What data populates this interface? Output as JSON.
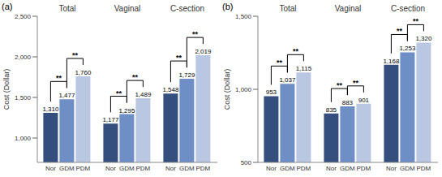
{
  "chart_data": [
    {
      "type": "bar",
      "title": "(a)",
      "y_label": "Cost (Dollar)",
      "grid": false,
      "data_labels": true,
      "categories": [
        "Total",
        "Vaginal",
        "C-section"
      ],
      "ylim": [
        700,
        2500
      ],
      "yticks": [
        {
          "value": 1000,
          "label": "1,000"
        },
        {
          "value": 1500,
          "label": "1,500"
        },
        {
          "value": 2000,
          "label": "2,000"
        },
        {
          "value": 2500,
          "label": "2,500"
        }
      ],
      "series": [
        {
          "name": "Nor",
          "color": "#344f7e",
          "values": [
            1310,
            1177,
            1548
          ],
          "value_labels": [
            "1,310",
            "1,177",
            "1,548"
          ]
        },
        {
          "name": "GDM",
          "color": "#6e8ec6",
          "values": [
            1477,
            1295,
            1729
          ],
          "value_labels": [
            "1,477",
            "1,295",
            "1,729"
          ]
        },
        {
          "name": "PDM",
          "color": "#b9c7e3",
          "values": [
            1760,
            1489,
            2019
          ],
          "value_labels": [
            "1,760",
            "1,489",
            "2,019"
          ]
        }
      ],
      "annotations": [
        {
          "category": "Total",
          "between": [
            "Nor",
            "GDM"
          ],
          "text": "**"
        },
        {
          "category": "Total",
          "between": [
            "GDM",
            "PDM"
          ],
          "text": "**"
        },
        {
          "category": "Vaginal",
          "between": [
            "Nor",
            "GDM"
          ],
          "text": "**"
        },
        {
          "category": "Vaginal",
          "between": [
            "GDM",
            "PDM"
          ],
          "text": "**"
        },
        {
          "category": "C-section",
          "between": [
            "Nor",
            "GDM"
          ],
          "text": "**"
        },
        {
          "category": "C-section",
          "between": [
            "GDM",
            "PDM"
          ],
          "text": "**"
        }
      ]
    },
    {
      "type": "bar",
      "title": "(b)",
      "y_label": "Cost (Dollar)",
      "grid": false,
      "data_labels": true,
      "categories": [
        "Total",
        "Vaginal",
        "C-section"
      ],
      "ylim": [
        500,
        1500
      ],
      "yticks": [
        500,
        {
          "value": 1000,
          "label": "1,000"
        },
        {
          "value": 1500,
          "label": "1,500"
        }
      ],
      "series": [
        {
          "name": "Nor",
          "color": "#344f7e",
          "values": [
            953,
            835,
            1168
          ],
          "value_labels": [
            "953",
            "835",
            "1,168"
          ]
        },
        {
          "name": "GDM",
          "color": "#6e8ec6",
          "values": [
            1037,
            883,
            1253
          ],
          "value_labels": [
            "1,037",
            "883",
            "1,253"
          ]
        },
        {
          "name": "PDM",
          "color": "#b9c7e3",
          "values": [
            1115,
            901,
            1320
          ],
          "value_labels": [
            "1,115",
            "901",
            "1,320"
          ]
        }
      ],
      "annotations": [
        {
          "category": "Total",
          "between": [
            "Nor",
            "GDM"
          ],
          "text": "**"
        },
        {
          "category": "Total",
          "between": [
            "GDM",
            "PDM"
          ],
          "text": "**"
        },
        {
          "category": "Vaginal",
          "between": [
            "Nor",
            "GDM"
          ],
          "text": "**"
        },
        {
          "category": "Vaginal",
          "between": [
            "GDM",
            "PDM"
          ],
          "text": "**"
        },
        {
          "category": "C-section",
          "between": [
            "Nor",
            "GDM"
          ],
          "text": "**"
        },
        {
          "category": "C-section",
          "between": [
            "GDM",
            "PDM"
          ],
          "text": "**"
        }
      ]
    }
  ]
}
